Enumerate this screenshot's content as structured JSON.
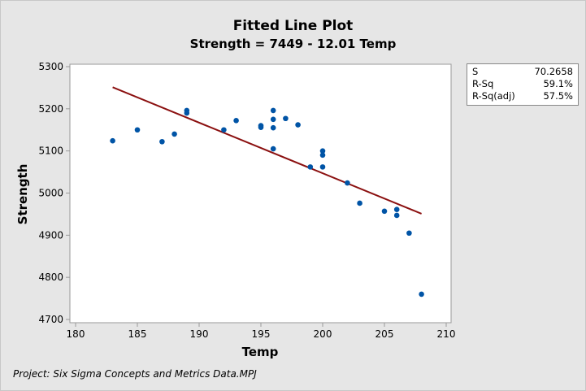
{
  "chart_data": {
    "type": "scatter",
    "title": "Fitted Line Plot",
    "subtitle": "Strength = 7449 - 12.01 Temp",
    "xlabel": "Temp",
    "ylabel": "Strength",
    "xlim": [
      179.5,
      210.5
    ],
    "ylim": [
      4690,
      5310
    ],
    "xticks": [
      180,
      185,
      190,
      195,
      200,
      205,
      210
    ],
    "yticks": [
      4700,
      4800,
      4900,
      5000,
      5100,
      5200,
      5300
    ],
    "grid": false,
    "points": [
      {
        "x": 183,
        "y": 5124
      },
      {
        "x": 185,
        "y": 5150
      },
      {
        "x": 187,
        "y": 5122
      },
      {
        "x": 188,
        "y": 5140
      },
      {
        "x": 189,
        "y": 5190
      },
      {
        "x": 189,
        "y": 5196
      },
      {
        "x": 192,
        "y": 5150
      },
      {
        "x": 193,
        "y": 5172
      },
      {
        "x": 195,
        "y": 5156
      },
      {
        "x": 195,
        "y": 5160
      },
      {
        "x": 196,
        "y": 5196
      },
      {
        "x": 196,
        "y": 5175
      },
      {
        "x": 196,
        "y": 5155
      },
      {
        "x": 196,
        "y": 5105
      },
      {
        "x": 197,
        "y": 5177
      },
      {
        "x": 198,
        "y": 5162
      },
      {
        "x": 199,
        "y": 5062
      },
      {
        "x": 200,
        "y": 5100
      },
      {
        "x": 200,
        "y": 5090
      },
      {
        "x": 200,
        "y": 5062
      },
      {
        "x": 202,
        "y": 5024
      },
      {
        "x": 203,
        "y": 4976
      },
      {
        "x": 205,
        "y": 4957
      },
      {
        "x": 206,
        "y": 4961
      },
      {
        "x": 206,
        "y": 4947
      },
      {
        "x": 207,
        "y": 4905
      },
      {
        "x": 208,
        "y": 4760
      }
    ],
    "fit_line": {
      "intercept": 7449,
      "slope": -12.01,
      "x_start": 183,
      "x_end": 208
    },
    "colors": {
      "points": "#0054a6",
      "line": "#8b1010"
    },
    "legend": "none"
  },
  "stats_box": {
    "rows": [
      {
        "label": "S",
        "value": "70.2658"
      },
      {
        "label": "R-Sq",
        "value": "59.1%"
      },
      {
        "label": "R-Sq(adj)",
        "value": "57.5%"
      }
    ]
  },
  "footer": "Project: Six Sigma Concepts and Metrics Data.MPJ"
}
